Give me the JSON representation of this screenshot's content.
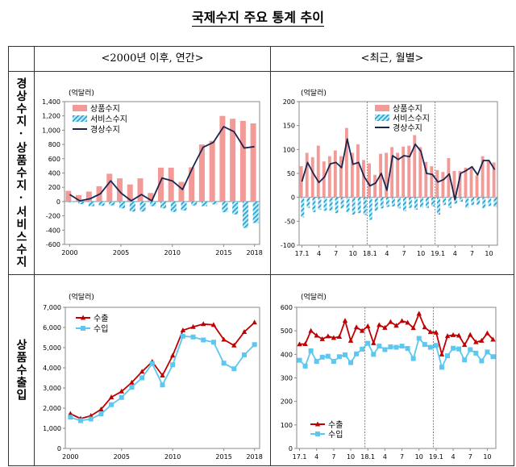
{
  "title": "국제수지 주요 통계 추이",
  "headers": {
    "annual": "<2000년 이후, 연간>",
    "monthly": "<최근, 월별>"
  },
  "row_labels": [
    "경상수지·상품수지·서비스수지",
    "상품수출입"
  ],
  "colors": {
    "goods": "#f29a97",
    "services_fill": "#bfeaf7",
    "services_hatch": "#1e9fd0",
    "current": "#1a2550",
    "exports": "#c00000",
    "imports": "#5cc8ef"
  },
  "chart_data": [
    {
      "id": "annual-balance",
      "type": "bar",
      "unit_label": "(억달러)",
      "x": [
        "2000",
        "2001",
        "2002",
        "2003",
        "2004",
        "2005",
        "2006",
        "2007",
        "2008",
        "2009",
        "2010",
        "2011",
        "2012",
        "2013",
        "2014",
        "2015",
        "2016",
        "2017",
        "2018"
      ],
      "xtick_labels": [
        {
          "at": "2000",
          "label": "2000"
        },
        {
          "at": "2005",
          "label": "2005"
        },
        {
          "at": "2010",
          "label": "2010"
        },
        {
          "at": "2015",
          "label": "2015"
        },
        {
          "at": "2018",
          "label": "2018"
        }
      ],
      "yticks": [
        "1,400",
        "1,200",
        "1,000",
        "800",
        "600",
        "400",
        "200",
        "0",
        "-200",
        "-400",
        "-600"
      ],
      "ylim": [
        -600,
        1400
      ],
      "separators_before": [],
      "legend_position": "top-left",
      "series": [
        {
          "name": "상품수지",
          "kind": "bar",
          "style": "solid",
          "values": [
            150,
            90,
            140,
            215,
            390,
            325,
            240,
            325,
            120,
            475,
            475,
            275,
            480,
            800,
            850,
            1200,
            1160,
            1130,
            1095
          ]
        },
        {
          "name": "서비스수지",
          "kind": "bar",
          "style": "hatched",
          "values": [
            -10,
            -35,
            -65,
            -60,
            -55,
            -95,
            -140,
            -140,
            -65,
            -95,
            -145,
            -125,
            -55,
            -65,
            -40,
            -150,
            -180,
            -370,
            -300
          ]
        },
        {
          "name": "경상수지",
          "kind": "line",
          "marker": "none",
          "values": [
            100,
            10,
            40,
            110,
            290,
            120,
            10,
            100,
            10,
            330,
            290,
            170,
            480,
            760,
            830,
            1050,
            980,
            750,
            770
          ]
        }
      ]
    },
    {
      "id": "monthly-balance",
      "type": "bar",
      "unit_label": "(억달러)",
      "x": [
        "2017.01",
        "2017.02",
        "2017.03",
        "2017.04",
        "2017.05",
        "2017.06",
        "2017.07",
        "2017.08",
        "2017.09",
        "2017.10",
        "2017.11",
        "2017.12",
        "2018.01",
        "2018.02",
        "2018.03",
        "2018.04",
        "2018.05",
        "2018.06",
        "2018.07",
        "2018.08",
        "2018.09",
        "2018.10",
        "2018.11",
        "2018.12",
        "2019.01",
        "2019.02",
        "2019.03",
        "2019.04",
        "2019.05",
        "2019.06",
        "2019.07",
        "2019.08",
        "2019.09",
        "2019.10",
        "2019.11"
      ],
      "xtick_labels": [
        {
          "at": "2017.01",
          "label": "17.1"
        },
        {
          "at": "2017.04",
          "label": "4"
        },
        {
          "at": "2017.07",
          "label": "7"
        },
        {
          "at": "2017.10",
          "label": "10"
        },
        {
          "at": "2018.01",
          "label": "18.1"
        },
        {
          "at": "2018.04",
          "label": "4"
        },
        {
          "at": "2018.07",
          "label": "7"
        },
        {
          "at": "2018.10",
          "label": "10"
        },
        {
          "at": "2019.01",
          "label": "19.1"
        },
        {
          "at": "2019.04",
          "label": "4"
        },
        {
          "at": "2019.07",
          "label": "7"
        },
        {
          "at": "2019.10",
          "label": "10"
        }
      ],
      "yticks": [
        "200",
        "150",
        "100",
        "50",
        "0",
        "-50",
        "-100"
      ],
      "ylim": [
        -100,
        200
      ],
      "separators_before": [
        "2018.01",
        "2019.01"
      ],
      "legend_position": "top-right",
      "series": [
        {
          "name": "상품수지",
          "kind": "bar",
          "style": "solid",
          "values": [
            65,
            93,
            84,
            108,
            75,
            86,
            98,
            86,
            145,
            93,
            111,
            78,
            71,
            47,
            91,
            93,
            105,
            93,
            106,
            108,
            130,
            105,
            74,
            65,
            57,
            53,
            82,
            55,
            55,
            62,
            62,
            46,
            86,
            78,
            73
          ]
        },
        {
          "name": "서비스수지",
          "kind": "bar",
          "style": "hatched",
          "values": [
            -42,
            -22,
            -31,
            -26,
            -28,
            -28,
            -33,
            -23,
            -31,
            -36,
            -33,
            -37,
            -47,
            -28,
            -23,
            -20,
            -19,
            -23,
            -29,
            -22,
            -26,
            -21,
            -22,
            -19,
            -36,
            -16,
            -22,
            -13,
            -9,
            -22,
            -16,
            -16,
            -23,
            -18,
            -20
          ]
        },
        {
          "name": "경상수지",
          "kind": "line",
          "marker": "none",
          "values": [
            33,
            73,
            50,
            31,
            43,
            70,
            73,
            62,
            122,
            69,
            73,
            43,
            24,
            30,
            50,
            15,
            87,
            79,
            87,
            85,
            111,
            96,
            50,
            48,
            32,
            37,
            49,
            -5,
            50,
            56,
            64,
            47,
            77,
            77,
            58
          ]
        }
      ]
    },
    {
      "id": "annual-trade",
      "type": "line",
      "unit_label": "(억달러)",
      "x": [
        "2000",
        "2001",
        "2002",
        "2003",
        "2004",
        "2005",
        "2006",
        "2007",
        "2008",
        "2009",
        "2010",
        "2011",
        "2012",
        "2013",
        "2014",
        "2015",
        "2016",
        "2017",
        "2018"
      ],
      "xtick_labels": [
        {
          "at": "2000",
          "label": "2000"
        },
        {
          "at": "2005",
          "label": "2005"
        },
        {
          "at": "2010",
          "label": "2010"
        },
        {
          "at": "2015",
          "label": "2015"
        },
        {
          "at": "2018",
          "label": "2018"
        }
      ],
      "yticks": [
        "7,000",
        "6,000",
        "5,000",
        "4,000",
        "3,000",
        "2,000",
        "1,000",
        "0"
      ],
      "ylim": [
        0,
        7000
      ],
      "separators_before": [],
      "legend_position": "top-left",
      "series": [
        {
          "name": "수출",
          "kind": "line",
          "marker": "triangle",
          "values": [
            1720,
            1480,
            1620,
            1940,
            2540,
            2830,
            3270,
            3810,
            4300,
            3620,
            4610,
            5860,
            6030,
            6170,
            6130,
            5400,
            5110,
            5780,
            6250
          ]
        },
        {
          "name": "수입",
          "kind": "line",
          "marker": "square",
          "values": [
            1550,
            1380,
            1460,
            1710,
            2170,
            2530,
            3040,
            3500,
            4210,
            3150,
            4150,
            5570,
            5530,
            5380,
            5270,
            4230,
            3950,
            4640,
            5150
          ]
        }
      ]
    },
    {
      "id": "monthly-trade",
      "type": "line",
      "unit_label": "(억달러)",
      "x": [
        "2017.01",
        "2017.02",
        "2017.03",
        "2017.04",
        "2017.05",
        "2017.06",
        "2017.07",
        "2017.08",
        "2017.09",
        "2017.10",
        "2017.11",
        "2017.12",
        "2018.01",
        "2018.02",
        "2018.03",
        "2018.04",
        "2018.05",
        "2018.06",
        "2018.07",
        "2018.08",
        "2018.09",
        "2018.10",
        "2018.11",
        "2018.12",
        "2019.01",
        "2019.02",
        "2019.03",
        "2019.04",
        "2019.05",
        "2019.06",
        "2019.07",
        "2019.08",
        "2019.09",
        "2019.10",
        "2019.11"
      ],
      "xtick_labels": [
        {
          "at": "2017.01",
          "label": "17.1"
        },
        {
          "at": "2017.04",
          "label": "4"
        },
        {
          "at": "2017.07",
          "label": "7"
        },
        {
          "at": "2017.10",
          "label": "10"
        },
        {
          "at": "2018.01",
          "label": "18.1"
        },
        {
          "at": "2018.04",
          "label": "4"
        },
        {
          "at": "2018.07",
          "label": "7"
        },
        {
          "at": "2018.10",
          "label": "10"
        },
        {
          "at": "2019.01",
          "label": "19.1"
        },
        {
          "at": "2019.04",
          "label": "4"
        },
        {
          "at": "2019.07",
          "label": "7"
        },
        {
          "at": "2019.10",
          "label": "10"
        }
      ],
      "yticks": [
        "600",
        "500",
        "400",
        "300",
        "200",
        "100",
        "0"
      ],
      "ylim": [
        0,
        600
      ],
      "separators_before": [
        "2018.01",
        "2019.01"
      ],
      "legend_position": "bottom-left",
      "series": [
        {
          "name": "수출",
          "kind": "line",
          "marker": "triangle",
          "values": [
            443,
            444,
            500,
            480,
            465,
            477,
            470,
            475,
            543,
            458,
            515,
            500,
            520,
            448,
            525,
            513,
            538,
            522,
            542,
            535,
            512,
            573,
            515,
            495,
            493,
            400,
            478,
            482,
            480,
            440,
            483,
            452,
            458,
            490,
            463
          ]
        },
        {
          "name": "수입",
          "kind": "line",
          "marker": "square",
          "values": [
            375,
            350,
            415,
            370,
            388,
            392,
            370,
            390,
            398,
            365,
            402,
            422,
            447,
            400,
            435,
            420,
            432,
            430,
            435,
            425,
            382,
            468,
            442,
            430,
            438,
            345,
            394,
            426,
            423,
            376,
            420,
            405,
            372,
            410,
            390
          ]
        }
      ]
    }
  ]
}
